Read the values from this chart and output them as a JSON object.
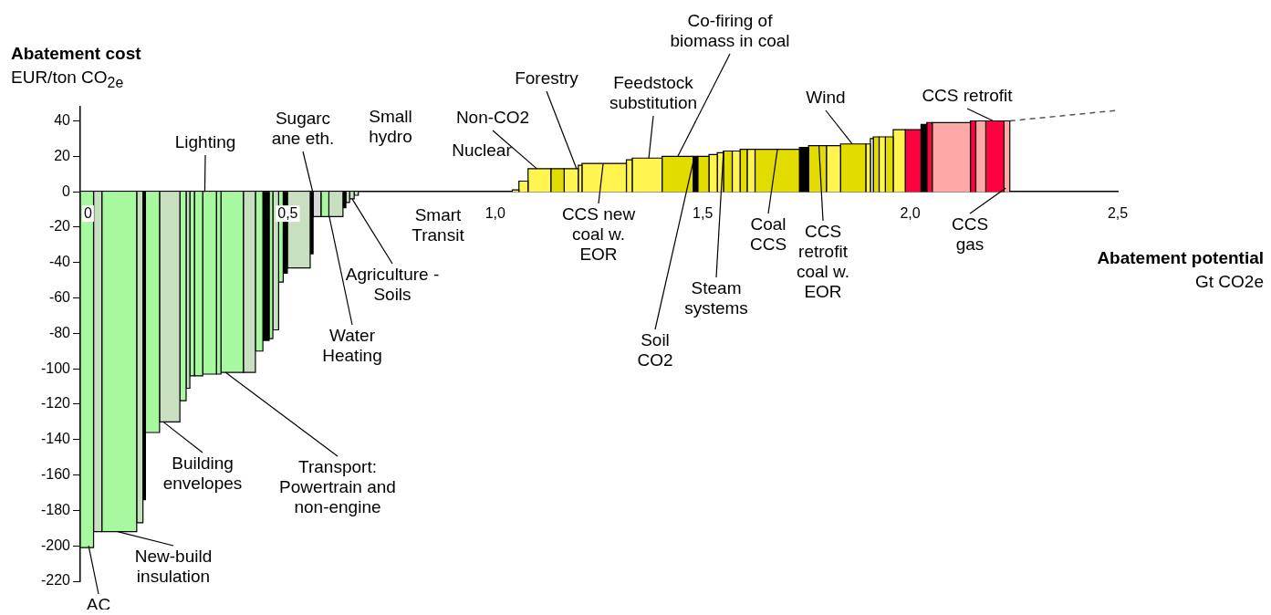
{
  "chart_data": {
    "type": "histogram",
    "ylabel": [
      "Abatement cost",
      "EUR/ton CO$_{2e}$"
    ],
    "xlabel": [
      "Abatement potential",
      "Gt CO2e"
    ],
    "xlim": [
      0,
      2.5
    ],
    "xticks": [
      0,
      {
        "value": 0.5,
        "label": "0,5"
      },
      {
        "value": 1,
        "label": "1,0"
      },
      {
        "value": 1.5,
        "label": "1,5"
      },
      {
        "value": 2,
        "label": "2,0"
      },
      {
        "value": 2.5,
        "label": "2,5"
      }
    ],
    "ylim": [
      -220,
      48
    ],
    "yticks": [
      -220,
      -200,
      -180,
      -160,
      -140,
      -120,
      -100,
      -80,
      -60,
      -40,
      -20,
      0,
      20,
      40
    ],
    "grid": false,
    "legend": false,
    "series": [
      {
        "bins": [
          0,
          0.032,
          0.052,
          0.136,
          0.151,
          0.157,
          0.191,
          0.24,
          0.255,
          0.264,
          0.275,
          0.295,
          0.328,
          0.339,
          0.393,
          0.422,
          0.44,
          0.455,
          0.464,
          0.478,
          0.489,
          0.499,
          0.554,
          0.561,
          0.58,
          0.599,
          0.633,
          0.64,
          0.649,
          0.66,
          0.67,
          1.041,
          1.057,
          1.079,
          1.134,
          1.166,
          1.2,
          1.209,
          1.316,
          1.33,
          1.402,
          1.477,
          1.488,
          1.515,
          1.535,
          1.55,
          1.571,
          1.59,
          1.607,
          1.626,
          1.733,
          1.755,
          1.798,
          1.832,
          1.893,
          1.904,
          1.911,
          1.925,
          1.94,
          1.959,
          1.988,
          2.026,
          2.04,
          2.053,
          2.145,
          2.158,
          2.182,
          2.226,
          2.24
        ],
        "values": [
          -201,
          -192,
          -192,
          -187,
          -174,
          -136,
          -130,
          -118,
          -111,
          -104,
          -104,
          -103,
          -103,
          -102,
          -102,
          -90,
          -84,
          -83,
          -78,
          -51,
          -46,
          -43,
          -35,
          -14,
          -14,
          -14,
          -9,
          -6,
          -4,
          -2,
          null,
          1,
          6,
          13,
          13,
          13,
          15,
          16,
          18,
          19,
          20,
          20,
          20,
          21,
          22,
          23,
          23,
          24,
          24,
          24,
          25,
          26,
          26,
          27,
          27,
          30,
          31,
          31,
          31,
          35,
          35,
          38,
          39,
          39,
          40,
          40,
          40,
          40
        ],
        "colors": [
          "#a8f8a0",
          "#c8e0c0",
          "#a8f8a0",
          "#c8e0c0",
          "#000000",
          "#a8f8a0",
          "#c8e0c0",
          "#a8f8a0",
          "#c8e0c0",
          "#a8f8a0",
          "#a8f8a0",
          "#a8f8a0",
          "#a8f8a0",
          "#a8f8a0",
          "#c8e0c0",
          "#a8f8a0",
          "#000000",
          "#a8f8a0",
          "#c8e0c0",
          "#a8f8a0",
          "#000000",
          "#c8e0c0",
          "#000000",
          "#d8d8d8",
          "#a8f8a0",
          "#c8e0c0",
          "#000000",
          "#c8e0c0",
          "#c8e0c0",
          "#c8e0c0",
          null,
          "#fff450",
          "#fff450",
          "#fff450",
          "#e2dc00",
          "#fff450",
          "#fff450",
          "#fff450",
          "#fff450",
          "#fff450",
          "#e2dc00",
          "#000000",
          "#e2dc00",
          "#fff450",
          "#fff450",
          "#e2dc00",
          "#fff450",
          "#e2dc00",
          "#fff450",
          "#e2dc00",
          "#000000",
          "#e2dc00",
          "#fff450",
          "#e2dc00",
          "#fff450",
          "#ffffff",
          "#e2dc00",
          "#fff450",
          "#e2dc00",
          "#fff450",
          "#ff0040",
          "#000000",
          "#ff0040",
          "#ffa8a8",
          "#ff0040",
          "#ffa8a8",
          "#ff0040",
          "#ffa8a8"
        ]
      },
      {
        "type": "line",
        "x": [
          2.24,
          2.5
        ],
        "values": [
          40,
          46
        ],
        "color": "#555555",
        "line_style": "dashed",
        "marker": "none"
      }
    ],
    "annotations": [
      {
        "text": "AC",
        "x": 0.02,
        "y": -200
      },
      {
        "text": "New-build\ninsulation",
        "x": 0.09,
        "y": -192
      },
      {
        "text": "Building\nenvelopes",
        "x": 0.2,
        "y": -130
      },
      {
        "text": "Transport:\nPowertrain and\nnon-engine",
        "x": 0.35,
        "y": -102
      },
      {
        "text": "Lighting",
        "x": 0.3,
        "y": 0
      },
      {
        "text": "Sugarc\nane eth.",
        "x": 0.56,
        "y": 0
      },
      "Small\nhydro",
      "Smart\nTransit",
      "Nuclear",
      {
        "text": "Non-CO2",
        "x": 1.1,
        "y": 13
      },
      {
        "text": "Forestry",
        "x": 1.196,
        "y": 13
      },
      {
        "text": "Feedstock\nsubstitution",
        "x": 1.37,
        "y": 19
      },
      {
        "text": "Co-firing of\nbiomass in coal",
        "x": 1.44,
        "y": 20
      },
      {
        "text": "CCS new\ncoal w.\nEOR",
        "x": 1.26,
        "y": 16
      },
      {
        "text": "Soil\nCO2",
        "x": 1.48,
        "y": 20
      },
      {
        "text": "Steam\nsystems",
        "x": 1.55,
        "y": 23
      },
      {
        "text": "Coal\nCCS",
        "x": 1.68,
        "y": 24
      },
      {
        "text": "CCS\nretrofit\ncoal w.\nEOR",
        "x": 1.78,
        "y": 26
      },
      {
        "text": "Wind",
        "x": 1.86,
        "y": 27
      },
      {
        "text": "CCS retrofit",
        "x": 2.2,
        "y": 40
      },
      {
        "text": "CCS\ngas",
        "x": 2.23,
        "y": 2
      },
      {
        "text": "Agriculture -\nSoils",
        "x": 0.655,
        "y": -4
      },
      {
        "text": "Water\nHeating",
        "x": 0.6,
        "y": -14
      }
    ]
  }
}
